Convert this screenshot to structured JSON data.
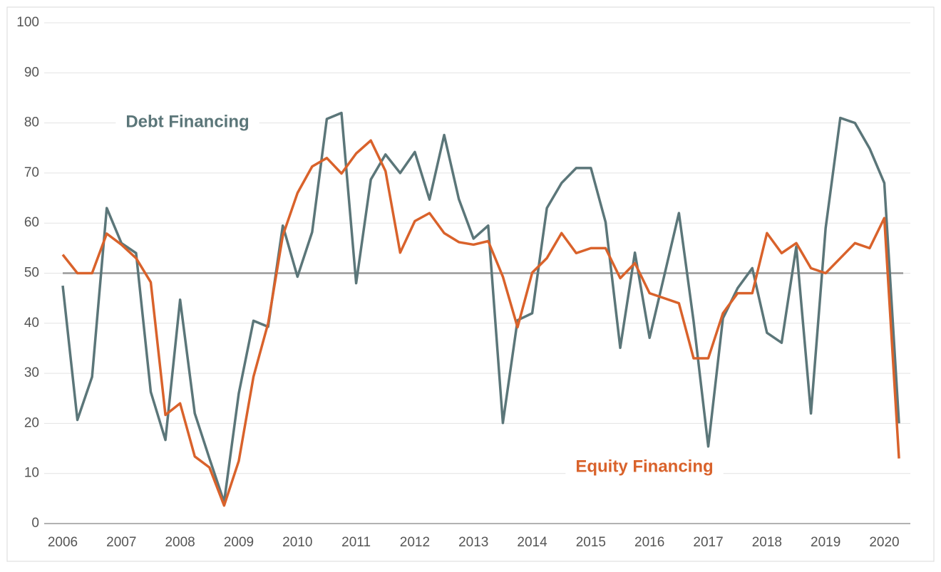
{
  "chart_data": {
    "type": "line",
    "categories": [
      "2006",
      null,
      null,
      null,
      "2007",
      null,
      null,
      null,
      "2008",
      null,
      null,
      null,
      "2009",
      null,
      null,
      null,
      "2010",
      null,
      null,
      null,
      "2011",
      null,
      null,
      null,
      "2012",
      null,
      null,
      null,
      "2013",
      null,
      null,
      null,
      "2014",
      null,
      null,
      null,
      "2015",
      null,
      null,
      null,
      "2016",
      null,
      null,
      null,
      "2017",
      null,
      null,
      null,
      "2018",
      null,
      null,
      null,
      "2019",
      null,
      null,
      null,
      "2020",
      null
    ],
    "series": [
      {
        "name": "Debt Financing",
        "color": "#5b7679",
        "values": [
          47.5,
          20.7,
          29.3,
          63,
          56,
          54,
          26.3,
          16.7,
          44.7,
          22,
          13,
          4.3,
          26,
          40.5,
          39.3,
          59.5,
          49.3,
          58.2,
          80.8,
          82,
          48,
          68.7,
          73.7,
          70,
          74.2,
          64.7,
          77.6,
          64.8,
          56.9,
          59.5,
          20.1,
          40.6,
          42,
          63,
          68,
          71,
          71,
          60.2,
          35.1,
          54.1,
          37.1,
          49.5,
          62,
          40.4,
          15.4,
          41,
          47,
          51,
          38.1,
          36.1,
          55.3,
          22,
          59,
          81,
          80,
          74.9,
          68,
          20
        ]
      },
      {
        "name": "Equity Financing",
        "color": "#d9622b",
        "values": [
          53.7,
          50,
          50,
          57.9,
          55.7,
          53,
          48.2,
          21.7,
          24,
          13.4,
          11.2,
          3.6,
          12.5,
          29.3,
          40,
          57.5,
          66,
          71.3,
          73,
          69.9,
          73.9,
          76.5,
          70.4,
          54.1,
          60.4,
          62,
          58,
          56.2,
          55.7,
          56.4,
          49.3,
          39.2,
          50.1,
          53,
          58,
          54,
          55,
          55,
          49,
          52,
          46,
          45,
          44,
          33,
          33,
          42,
          46,
          46,
          58,
          54,
          56,
          51,
          50,
          53,
          56,
          55,
          61,
          13
        ]
      }
    ],
    "ylim": [
      0,
      100
    ],
    "yticks": [
      0,
      10,
      20,
      30,
      40,
      50,
      60,
      70,
      80,
      90,
      100
    ],
    "grid": true,
    "hline": 50
  }
}
